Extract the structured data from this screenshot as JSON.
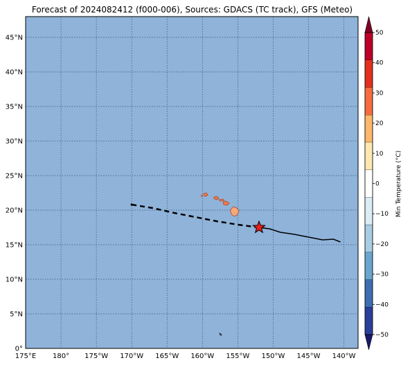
{
  "title": "Forecast of 2024082412 (f000-006), Sources: GDACS (TC track), GFS (Meteo)",
  "map": {
    "ocean_color": "#8fb3d9",
    "grid_color": "#3a5478",
    "lon_range": [
      175,
      222
    ],
    "lat_range": [
      0,
      48
    ],
    "lon_ticks": [
      "175°E",
      "180°",
      "175°W",
      "170°W",
      "165°W",
      "160°W",
      "155°W",
      "150°W",
      "145°W",
      "140°W"
    ],
    "lat_ticks": [
      "0°",
      "5°N",
      "10°N",
      "15°N",
      "20°N",
      "25°N",
      "30°N",
      "35°N",
      "40°N",
      "45°N"
    ]
  },
  "track": {
    "forecast_dashed": [
      [
        190.0,
        20.8
      ],
      [
        193.0,
        20.3
      ],
      [
        196.0,
        19.6
      ],
      [
        199.0,
        19.0
      ],
      [
        202.0,
        18.4
      ],
      [
        205.0,
        17.9
      ],
      [
        208.0,
        17.5
      ]
    ],
    "past_solid": [
      [
        208.0,
        17.5
      ],
      [
        209.5,
        17.3
      ],
      [
        211.0,
        16.8
      ],
      [
        213.0,
        16.5
      ],
      [
        215.0,
        16.1
      ],
      [
        217.0,
        15.7
      ],
      [
        218.5,
        15.8
      ],
      [
        219.5,
        15.4
      ]
    ],
    "current_position": [
      208.0,
      17.5
    ],
    "current_marker_color": "#e8201c"
  },
  "colorbar": {
    "label": "Min Temperature (°C)",
    "ticks": [
      "50",
      "40",
      "30",
      "20",
      "10",
      "0",
      "−10",
      "−20",
      "−30",
      "−40",
      "−50"
    ],
    "colors_top_to_bottom": [
      "#800026",
      "#bd0026",
      "#e3301c",
      "#f56d3e",
      "#fdb86b",
      "#fee8b0",
      "#ffffff",
      "#dcecf5",
      "#a8cde3",
      "#6aa5cf",
      "#3d6fb0",
      "#2b3f99",
      "#1a1a6b"
    ]
  }
}
